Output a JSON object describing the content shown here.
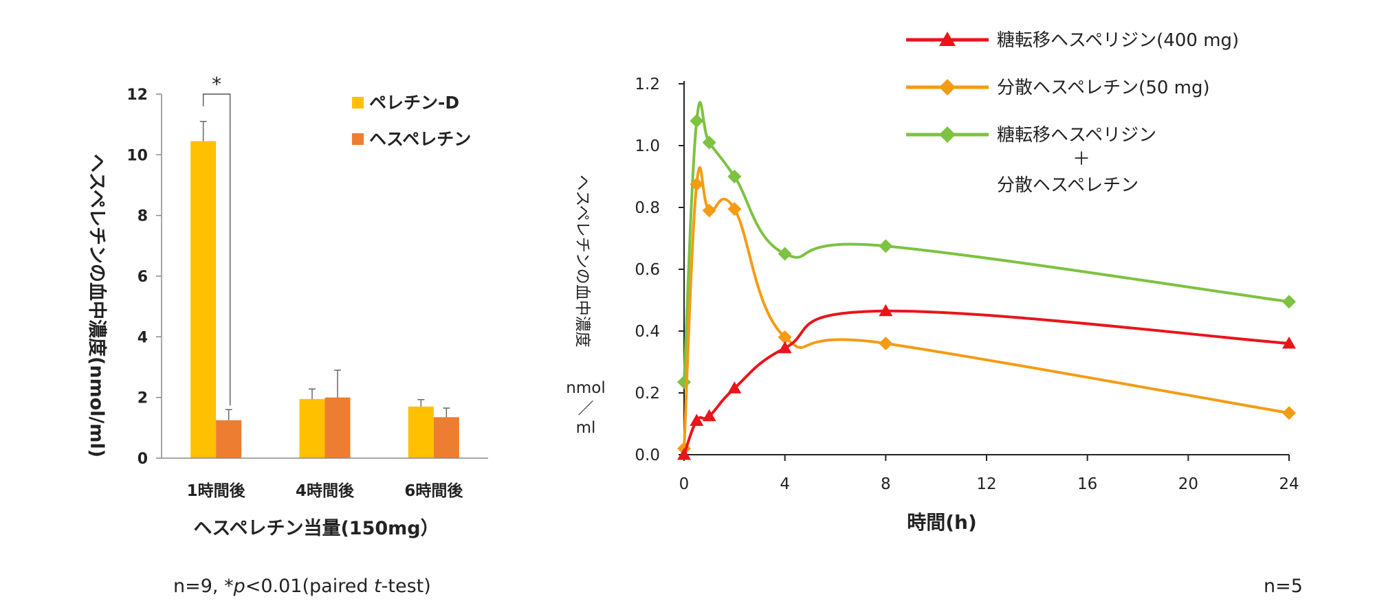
{
  "chart_data": [
    {
      "type": "bar",
      "categories": [
        "1時間後",
        "4時間後",
        "6時間後"
      ],
      "series": [
        {
          "name": "ペレチン-D",
          "values": [
            10.45,
            1.95,
            1.7
          ],
          "errors": [
            0.65,
            0.33,
            0.23
          ],
          "color": "#FFC000"
        },
        {
          "name": "ヘスペレチン",
          "values": [
            1.25,
            2.0,
            1.35
          ],
          "errors": [
            0.35,
            0.9,
            0.3
          ],
          "color": "#ED7D31"
        }
      ],
      "ylim": [
        0,
        12
      ],
      "yticks": [
        "0",
        "2",
        "4",
        "6",
        "8",
        "10",
        "12"
      ],
      "xlabel": "ヘスペレチン当量(150mg）",
      "ylabel": "ヘスペレチンの血中濃度(nmol/ml)",
      "significance": "*",
      "note": {
        "pre": "n=9, *",
        "p": "p",
        "mid": "<0.01(paired ",
        "t": "t",
        "post": "-test)"
      }
    },
    {
      "type": "line",
      "x": [
        0,
        0.5,
        1,
        2,
        4,
        8,
        24
      ],
      "series": [
        {
          "name": "糖転移ヘスペリジン(400 mg)",
          "values": [
            0.0,
            0.11,
            0.125,
            0.215,
            0.345,
            0.465,
            0.36
          ],
          "marker": "triangle",
          "color": "#E8151B"
        },
        {
          "name": "分散ヘスペレチン(50 mg)",
          "values": [
            0.02,
            0.875,
            0.79,
            0.795,
            0.38,
            0.36,
            0.135
          ],
          "marker": "diamond",
          "color": "#F39C12"
        },
        {
          "name_lines": [
            "糖転移ヘスペリジン",
            "＋",
            "分散ヘスペレチン"
          ],
          "values": [
            0.235,
            1.08,
            1.01,
            0.9,
            0.65,
            0.675,
            0.495
          ],
          "marker": "diamond",
          "color": "#7DC242"
        }
      ],
      "xlim": [
        0,
        24
      ],
      "ylim": [
        0,
        1.2
      ],
      "xticks": [
        "0",
        "4",
        "8",
        "12",
        "16",
        "20",
        "24"
      ],
      "yticks": [
        "0.0",
        "0.2",
        "0.4",
        "0.6",
        "0.8",
        "1.0",
        "1.2"
      ],
      "xlabel": "時間(h)",
      "ylabel_main": "ヘスペレチンの血中濃度",
      "ylabel_unit": [
        "nmol",
        "／",
        "ml"
      ],
      "note": "n=5"
    }
  ]
}
